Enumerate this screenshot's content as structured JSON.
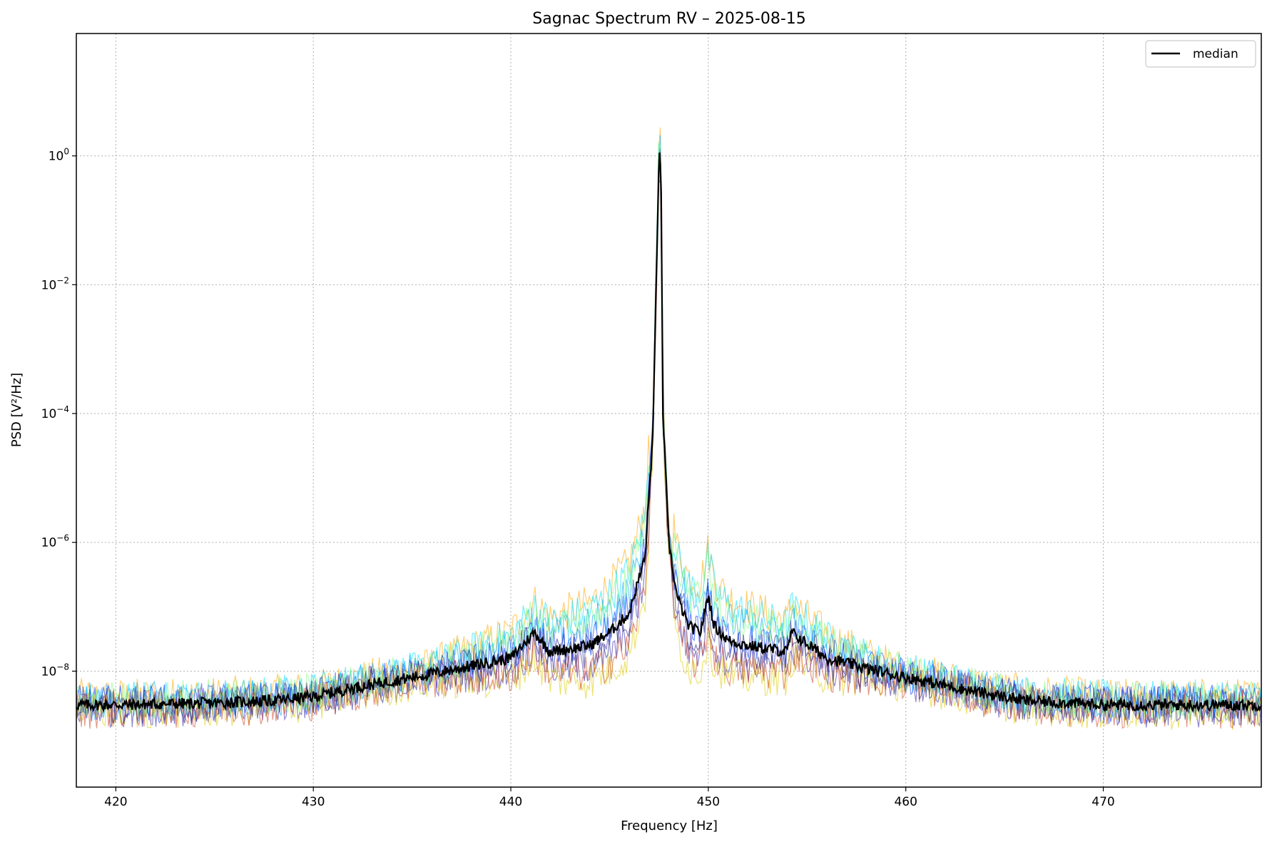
{
  "chart_data": {
    "type": "line",
    "title": "Sagnac Spectrum RV – 2025-08-15",
    "xlabel": "Frequency [Hz]",
    "ylabel": "PSD [V²/Hz]",
    "xlim": [
      418,
      478
    ],
    "ylim_log10": [
      -9.8,
      1.9
    ],
    "yscale": "log",
    "grid": true,
    "legend": {
      "placement": "top-right",
      "entries": [
        {
          "name": "median",
          "color": "#000000"
        }
      ]
    },
    "x_ticks": [
      420,
      430,
      440,
      450,
      460,
      470
    ],
    "x_tick_labels": [
      "420",
      "430",
      "440",
      "450",
      "460",
      "470"
    ],
    "y_ticks_log10": [
      -8,
      -6,
      -4,
      -2,
      0
    ],
    "y_tick_base": "10",
    "y_tick_exponents": [
      "−8",
      "−6",
      "−4",
      "−2",
      "0"
    ],
    "series": [
      {
        "name": "median",
        "color": "#000000",
        "x": [
          418,
          420,
          425,
          428,
          430,
          432,
          435,
          438,
          440,
          441.2,
          442,
          444,
          445,
          446,
          446.8,
          447.2,
          447.5,
          447.6,
          447.7,
          448,
          448.4,
          449,
          449.6,
          450,
          450.3,
          451,
          452,
          454,
          454.2,
          456,
          458,
          460,
          462,
          464,
          466,
          470,
          475,
          478
        ],
        "y": [
          3e-09,
          3e-09,
          3.2e-09,
          3.5e-09,
          4e-09,
          5.5e-09,
          8e-09,
          1.2e-08,
          1.6e-08,
          4e-08,
          2e-08,
          2.5e-08,
          4e-08,
          8e-08,
          6e-07,
          5e-05,
          1.0,
          0.8,
          0.0001,
          1e-06,
          1.5e-07,
          5e-08,
          4e-08,
          1.5e-07,
          5e-08,
          3e-08,
          2.5e-08,
          2e-08,
          4e-08,
          1.6e-08,
          1.1e-08,
          8e-09,
          6e-09,
          4.5e-09,
          3.5e-09,
          3e-09,
          3e-09,
          3e-09
        ]
      }
    ],
    "individual_spectra_colors": [
      "#ffa500",
      "#00e0ff",
      "#00aaff",
      "#0033ff",
      "#3322aa",
      "#ddcc00",
      "#cc4422",
      "#80ff80",
      "#202080"
    ]
  }
}
